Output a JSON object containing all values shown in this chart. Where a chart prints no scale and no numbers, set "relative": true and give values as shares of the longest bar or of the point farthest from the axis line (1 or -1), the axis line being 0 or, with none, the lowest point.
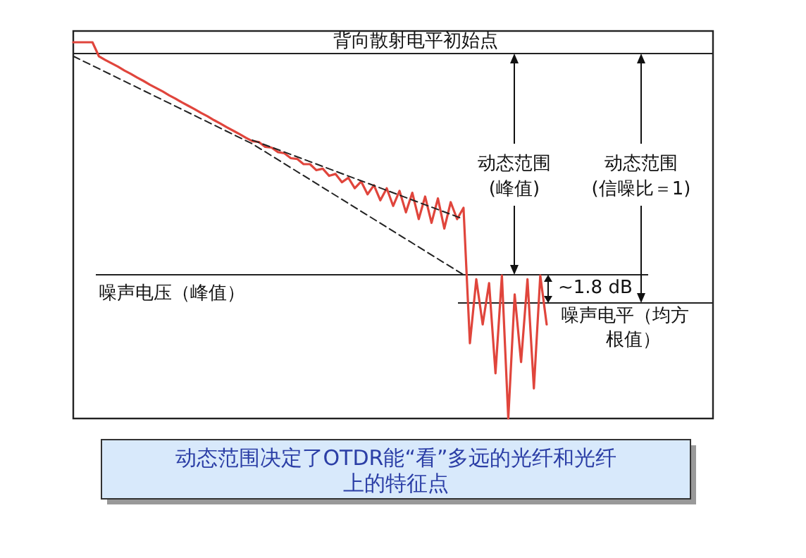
{
  "chart_data": {
    "type": "line",
    "relative": true,
    "categories": [
      null,
      null,
      null,
      null,
      null,
      null,
      null,
      null,
      null,
      null,
      null,
      null,
      null,
      null,
      null,
      null,
      null,
      null,
      null,
      null,
      null,
      null,
      null,
      null,
      null,
      null,
      null,
      null,
      null,
      null,
      null,
      null,
      null,
      null,
      null,
      null,
      null,
      null,
      null,
      null,
      null,
      null,
      null,
      null,
      null,
      null,
      null,
      null,
      null,
      null,
      null,
      null,
      null,
      null,
      null,
      null,
      null,
      null,
      null,
      null,
      null,
      null,
      null,
      null,
      null,
      null,
      null,
      null,
      null,
      null,
      null,
      null,
      null,
      null,
      null,
      null,
      null,
      null,
      null,
      null,
      null,
      null,
      null,
      null,
      null,
      null,
      null,
      null,
      null,
      null,
      null,
      null,
      null,
      null,
      null,
      null,
      null,
      null,
      null,
      null,
      null
    ],
    "series": [
      {
        "color": "#e0453c",
        "line_style": "solid",
        "values": [
          1,
          1,
          1,
          1,
          0.963,
          0.953,
          0.944,
          0.935,
          0.925,
          0.916,
          0.906,
          0.897,
          0.887,
          0.878,
          0.869,
          0.859,
          0.85,
          0.84,
          0.831,
          0.822,
          0.812,
          0.803,
          0.793,
          0.784,
          0.774,
          0.765,
          0.756,
          0.746,
          0.737,
          0.735,
          0.722,
          0.72,
          0.708,
          0.705,
          0.692,
          0.69,
          0.676,
          0.676,
          0.66,
          0.664,
          0.645,
          0.65,
          0.628,
          0.64,
          0.612,
          0.63,
          0.596,
          0.62,
          0.58,
          0.612,
          0.565,
          0.605,
          0.548,
          0.6,
          0.53,
          0.59,
          0.52,
          0.585,
          0.505,
          0.575,
          0.53,
          0.56,
          0.2,
          0.37,
          0.25,
          0.36,
          0.12,
          0.38,
          0,
          0.33,
          0.15,
          0.37,
          0.08,
          0.38,
          0.25,
          null,
          null,
          null,
          null,
          null,
          null,
          null,
          null,
          null,
          null,
          null,
          null,
          null,
          null,
          null,
          null,
          null,
          null,
          null,
          null,
          null,
          null,
          null,
          null,
          null,
          null
        ]
      },
      {
        "type": "line",
        "color": "#222222",
        "line_style": "dashed",
        "values": [
          0.963,
          null,
          null,
          null,
          null,
          null,
          null,
          null,
          null,
          null,
          null,
          null,
          null,
          null,
          null,
          null,
          null,
          null,
          null,
          null,
          null,
          null,
          null,
          null,
          null,
          null,
          null,
          null,
          0.73,
          null,
          null,
          null,
          null,
          null,
          null,
          null,
          null,
          null,
          null,
          null,
          null,
          null,
          null,
          null,
          null,
          null,
          null,
          null,
          null,
          null,
          null,
          null,
          null,
          null,
          null,
          null,
          null,
          null,
          null,
          null,
          null,
          0.382,
          null,
          null,
          null,
          null,
          null,
          null,
          null,
          null,
          null,
          null,
          null,
          null,
          null,
          null,
          null,
          null,
          null,
          null,
          null,
          null,
          null,
          null,
          null,
          null,
          null,
          null,
          null,
          null,
          null,
          null,
          null,
          null,
          null,
          null,
          null,
          null,
          null,
          null,
          null
        ]
      },
      {
        "type": "line",
        "color": "#222222",
        "line_style": "dashed",
        "values": [
          null,
          null,
          null,
          null,
          null,
          null,
          null,
          null,
          null,
          null,
          null,
          null,
          null,
          null,
          null,
          null,
          null,
          null,
          null,
          null,
          null,
          null,
          null,
          null,
          null,
          null,
          null,
          null,
          0.74,
          null,
          null,
          null,
          null,
          null,
          null,
          null,
          null,
          null,
          null,
          null,
          null,
          null,
          null,
          null,
          null,
          null,
          null,
          null,
          null,
          null,
          null,
          null,
          null,
          null,
          null,
          null,
          null,
          null,
          null,
          null,
          null,
          0.53,
          null,
          null,
          null,
          null,
          null,
          null,
          null,
          null,
          null,
          null,
          null,
          null,
          null,
          null,
          null,
          null,
          null,
          null,
          null,
          null,
          null,
          null,
          null,
          null,
          null,
          null,
          null,
          null,
          null,
          null,
          null,
          null,
          null,
          null,
          null,
          null,
          null,
          null,
          null
        ]
      }
    ],
    "ref_lines": [
      {
        "axis": "y",
        "value": 0.97,
        "label": "背向散射电平初始点"
      },
      {
        "axis": "y",
        "value": 0.382,
        "label": "噪声电压（峰值）"
      },
      {
        "axis": "y",
        "value": 0.307,
        "label": "噪声电平（均方根值）"
      }
    ],
    "annotations": [
      "动态范围(峰值)",
      "动态范围(信噪比＝1)",
      "~1.8 dB",
      "动态范围决定了OTDR能“看”多远的光纤和光纤上的特征点"
    ]
  }
}
